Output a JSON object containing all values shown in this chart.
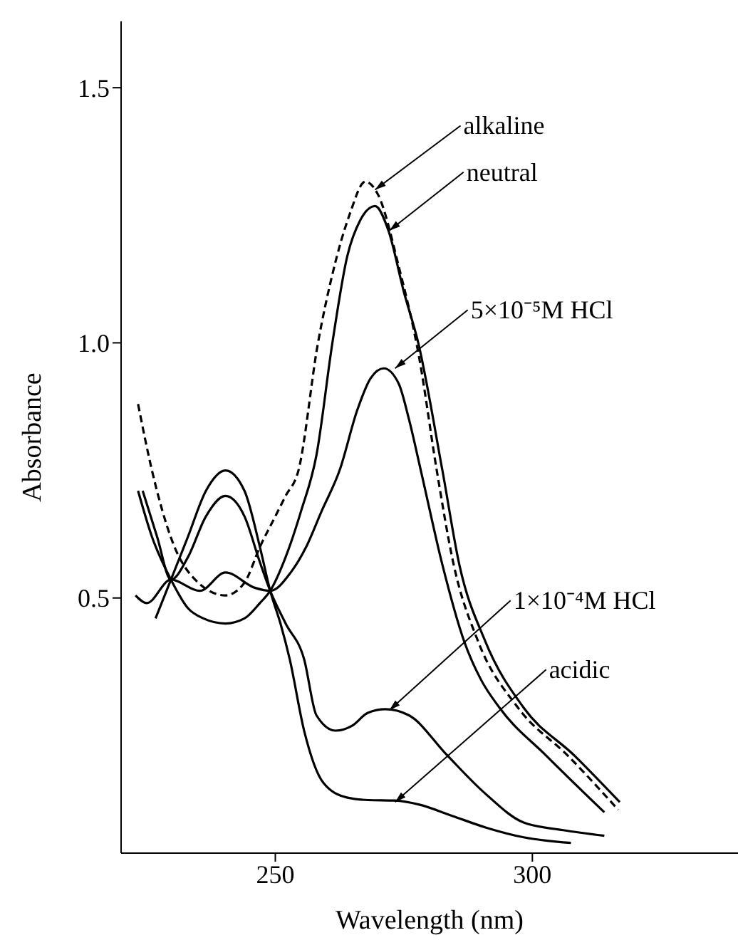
{
  "chart_data": {
    "type": "line",
    "xlabel": "Wavelength (nm)",
    "ylabel": "Absorbance",
    "xlim": [
      220,
      340
    ],
    "ylim": [
      0,
      1.63
    ],
    "xticks": [
      250,
      300
    ],
    "yticks": [
      0.5,
      {
        "value": 1,
        "label": "1.0"
      },
      1.5
    ],
    "grid": false,
    "marker": "none",
    "series": [
      {
        "color": "#000000",
        "line_style": "dashed",
        "x": [
          223.3,
          226,
          230,
          235,
          240.3,
          244,
          247,
          250,
          252,
          254.5,
          258.3,
          261,
          264.4,
          267.5,
          270,
          274,
          278,
          281.4,
          284.7,
          289.4,
          297.2,
          307,
          316.7
        ],
        "values": [
          0.88,
          0.75,
          0.61,
          0.53,
          0.505,
          0.53,
          0.6,
          0.66,
          0.7,
          0.75,
          1.0,
          1.13,
          1.25,
          1.316,
          1.29,
          1.15,
          0.97,
          0.75,
          0.565,
          0.416,
          0.285,
          0.19,
          0.085
        ]
      },
      {
        "color": "#000000",
        "line_style": "solid",
        "x": [
          223.3,
          226,
          229.7,
          233,
          236,
          240.3,
          244,
          247,
          249,
          252,
          255,
          258,
          261.1,
          264,
          266.5,
          269.4,
          272,
          275,
          277.8,
          282.5,
          285.8,
          290.8,
          298.3,
          308.3,
          317
        ],
        "values": [
          0.71,
          0.62,
          0.536,
          0.48,
          0.46,
          0.45,
          0.46,
          0.49,
          0.514,
          0.58,
          0.67,
          0.78,
          1.0,
          1.17,
          1.24,
          1.268,
          1.22,
          1.1,
          1.0,
          0.75,
          0.565,
          0.416,
          0.285,
          0.19,
          0.1
        ]
      },
      {
        "color": "#000000",
        "line_style": "solid",
        "x": [
          222.8,
          225,
          229.7,
          235.3,
          240.3,
          246,
          249,
          253,
          256,
          259,
          262.5,
          266,
          268.5,
          271.1,
          274,
          276,
          278.3,
          282.5,
          286.7,
          290,
          293.6,
          302.8,
          314
        ],
        "values": [
          0.505,
          0.49,
          0.536,
          0.514,
          0.55,
          0.52,
          0.514,
          0.55,
          0.6,
          0.67,
          0.75,
          0.87,
          0.93,
          0.95,
          0.92,
          0.85,
          0.75,
          0.565,
          0.416,
          0.34,
          0.285,
          0.19,
          0.08
        ]
      },
      {
        "color": "#000000",
        "line_style": "solid",
        "x": [
          224.2,
          227,
          229.7,
          233,
          236.5,
          240.3,
          244,
          247,
          249,
          252,
          255.6,
          258,
          261.7,
          265,
          268,
          271.4,
          276,
          283.3,
          290.8,
          298.3,
          306,
          314
        ],
        "values": [
          0.71,
          0.62,
          0.536,
          0.58,
          0.66,
          0.7,
          0.66,
          0.57,
          0.514,
          0.45,
          0.38,
          0.27,
          0.24,
          0.25,
          0.275,
          0.282,
          0.27,
          0.193,
          0.117,
          0.06,
          0.045,
          0.034
        ]
      },
      {
        "color": "#000000",
        "line_style": "solid",
        "x": [
          226.7,
          229.7,
          233,
          236.5,
          240.3,
          244,
          247,
          249,
          251,
          252.8,
          255.6,
          259.4,
          263.9,
          268,
          273.3,
          278,
          284.4,
          291,
          298.3,
          307.5
        ],
        "values": [
          0.46,
          0.536,
          0.62,
          0.71,
          0.75,
          0.71,
          0.6,
          0.514,
          0.45,
          0.38,
          0.24,
          0.137,
          0.109,
          0.104,
          0.103,
          0.095,
          0.073,
          0.05,
          0.031,
          0.02
        ]
      }
    ],
    "annotations": [
      {
        "text": "alkaline",
        "x": 269.4,
        "y": 1.3
      },
      {
        "text": "neutral",
        "x": 272.2,
        "y": 1.22
      },
      {
        "text": "5×10⁻⁵M HCl",
        "x": 273.3,
        "y": 0.95
      },
      {
        "text": "1×10⁻⁴M HCl",
        "x": 272.2,
        "y": 0.28
      },
      {
        "text": "acidic",
        "x": 273.3,
        "y": 0.1
      }
    ]
  }
}
